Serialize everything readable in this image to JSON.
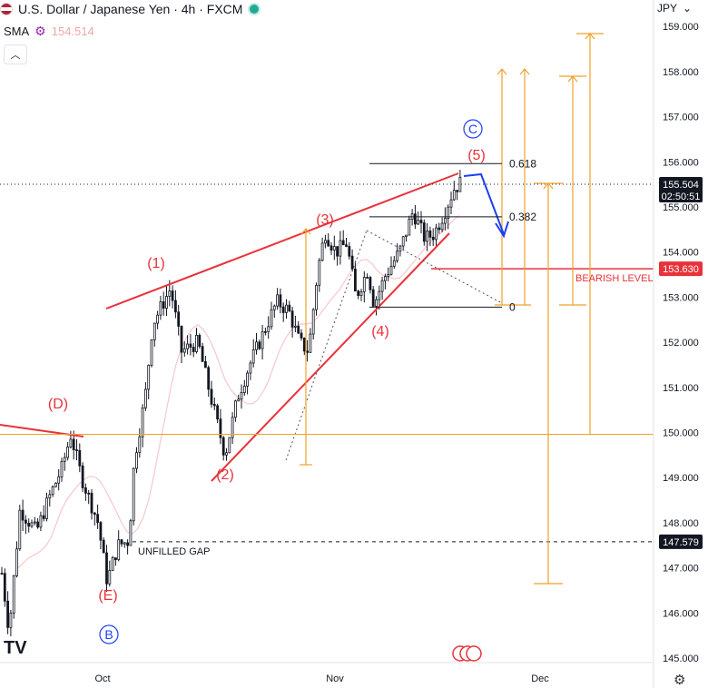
{
  "header": {
    "title": "U.S. Dollar / Japanese Yen · 4h · FXCM",
    "sma_label": "SMA",
    "sma_value": "154.514",
    "collapse_icon": "chevron-up-icon"
  },
  "currency": {
    "label": "JPY",
    "icon": "chevron-down-icon"
  },
  "logo": "TV",
  "settings_icon": "gear-icon",
  "colors": {
    "up": "#131722",
    "red": "#e8323a",
    "orange": "#f0a12b",
    "blue": "#1e3ff0",
    "sma": "#f6c8cd",
    "axis_tag": "#131722",
    "bearish": "#e8323a"
  },
  "chart_data": {
    "type": "candlestick",
    "symbol": "USDJPY",
    "timeframe": "4h",
    "y_axis": {
      "min": 145,
      "max": 159,
      "ticks": [
        "159.000",
        "158.000",
        "157.000",
        "156.000",
        "155.000",
        "154.000",
        "153.000",
        "152.000",
        "151.000",
        "150.000",
        "149.000",
        "148.000",
        "147.000",
        "146.000",
        "145.000"
      ]
    },
    "x_axis": {
      "labels": [
        "Oct",
        "Nov",
        "Dec"
      ]
    },
    "price_tags": [
      {
        "label": "155.504",
        "sub": "02:50:51",
        "value": 155.504,
        "style": "dark"
      },
      {
        "label": "153.630",
        "value": 153.63,
        "style": "red"
      },
      {
        "label": "147.579",
        "value": 147.579,
        "style": "dark"
      }
    ],
    "wave_labels": [
      {
        "text": "(1)",
        "color": "red"
      },
      {
        "text": "(2)",
        "color": "red"
      },
      {
        "text": "(3)",
        "color": "red"
      },
      {
        "text": "(4)",
        "color": "red"
      },
      {
        "text": "(5)",
        "color": "red"
      },
      {
        "text": "(D)",
        "color": "red"
      },
      {
        "text": "(E)",
        "color": "red"
      },
      {
        "text": "B",
        "color": "blue"
      },
      {
        "text": "C",
        "color": "blue"
      }
    ],
    "fib_levels": [
      {
        "label": "0.618",
        "value": 155.96
      },
      {
        "label": "0.382",
        "value": 154.78
      },
      {
        "label": "0",
        "value": 152.78
      }
    ],
    "annotations": [
      {
        "text": "BEARISH LEVEL",
        "value": 153.63
      },
      {
        "text": "UNFILLED GAP",
        "value": 147.579
      }
    ],
    "levels": {
      "support_line": 149.96,
      "gap": 147.579,
      "bearish": 153.63
    },
    "key_points": [
      {
        "wave": "(E)",
        "x": "late Sep",
        "y": 146.6
      },
      {
        "wave": "(D)",
        "x": "mid Sep",
        "y": 150.0
      },
      {
        "wave": "(1)",
        "x": "early Oct",
        "y": 153.25
      },
      {
        "wave": "(2)",
        "x": "mid Oct",
        "y": 149.4
      },
      {
        "wave": "(3)",
        "x": "late Oct",
        "y": 154.55
      },
      {
        "wave": "(4)",
        "x": "early Nov",
        "y": 152.78
      },
      {
        "wave": "(5)",
        "x": "mid Nov",
        "y": 155.7
      }
    ],
    "sma_line_color": "#f6c8cd",
    "last_price": 155.504
  }
}
